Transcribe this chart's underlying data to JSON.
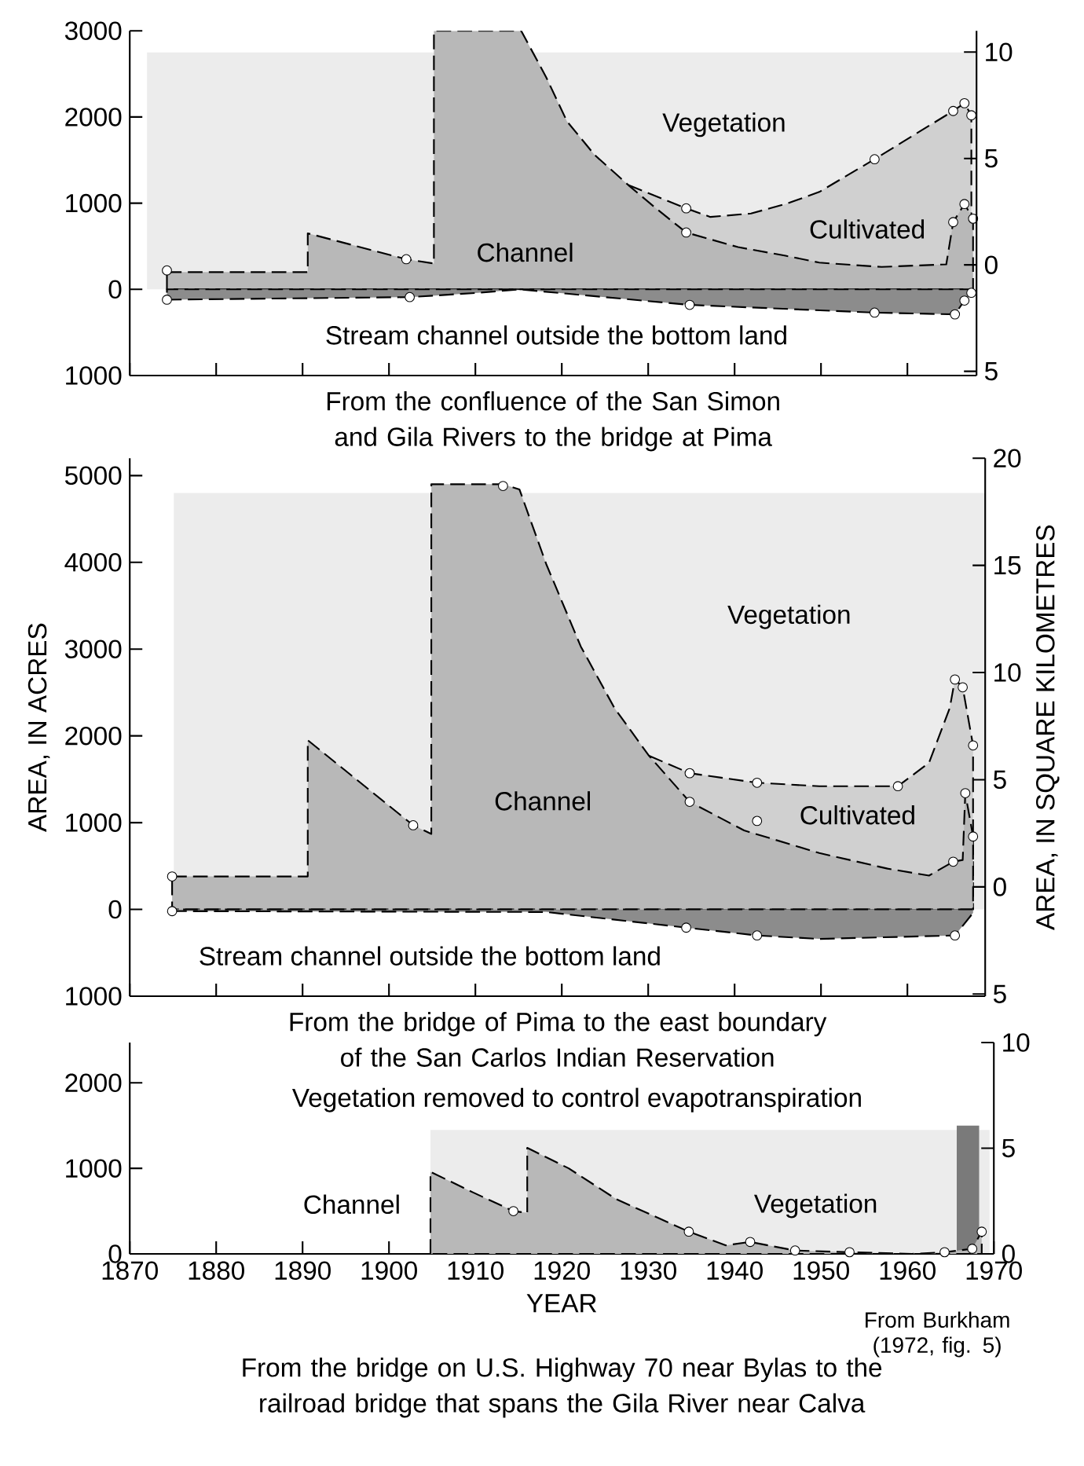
{
  "chart_data": [
    {
      "type": "area",
      "title": "From the confluence of the San Simon and Gila Rivers to the bridge at Pima",
      "xlim": [
        1870,
        1968
      ],
      "ylim": [
        -1000,
        3000
      ],
      "xticks": [
        1870,
        1880,
        1890,
        1900,
        1910,
        1920,
        1930,
        1940,
        1950,
        1960
      ],
      "yticks": [
        {
          "value": -1000,
          "label": "1000"
        },
        0,
        1000,
        2000,
        3000
      ],
      "y2lim": [
        -5.2,
        11
      ],
      "y2ticks": [
        {
          "value": -5,
          "label": "5"
        },
        0,
        5,
        10
      ],
      "tick_labels": "y",
      "series": [
        {
          "color": "#ececec",
          "x": [
            1872,
            1968
          ],
          "values": [
            2750,
            2750
          ]
        },
        {
          "color": "#d0d0d0",
          "line_style": "dashed",
          "x": [
            1927.7,
            1934.4,
            1937.2,
            1941.9,
            1945.9,
            1949.8,
            1956.2,
            1960.9,
            1965.3,
            1966.6,
            1967.4
          ],
          "values": [
            1210,
            940,
            840,
            880,
            990,
            1130,
            1510,
            1800,
            2070,
            2160,
            2020
          ]
        },
        {
          "color": "#b8b8b8",
          "line_style": "dashed",
          "x": [
            1874.3,
            1890.6,
            1890.6,
            1902.0,
            1905.2,
            1905.2,
            1915.3,
            1918.2,
            1920.6,
            1923.8,
            1927.7,
            1930.9,
            1934.4,
            1940.4,
            1945.9,
            1949.8,
            1957.0,
            1964.5,
            1965.3,
            1966.6,
            1967.6
          ],
          "values": [
            200,
            200,
            650,
            350,
            300,
            3000,
            3000,
            2460,
            1950,
            1560,
            1210,
            940,
            660,
            490,
            390,
            310,
            260,
            290,
            780,
            990,
            820
          ]
        },
        {
          "color": "#8c8c8c",
          "line_style": "dashed",
          "x": [
            1874.3,
            1902.4,
            1910.3,
            1915.1,
            1920.6,
            1934.8,
            1956.2,
            1965.5,
            1966.6,
            1967.4
          ],
          "values": [
            -120,
            -90,
            -40,
            0,
            -50,
            -180,
            -270,
            -290,
            -130,
            -40
          ]
        },
        {
          "type": "scatter",
          "color": "#000000",
          "marker": "circle",
          "x": [
            1874.3,
            1902.0,
            1934.4,
            1934.4,
            1956.2,
            1965.3,
            1966.6,
            1967.4,
            1965.3,
            1966.6,
            1967.6,
            1874.3,
            1902.4,
            1934.8,
            1956.2,
            1965.5,
            1966.6,
            1967.4
          ],
          "values": [
            220,
            350,
            940,
            660,
            1510,
            2070,
            2160,
            2020,
            780,
            990,
            820,
            -120,
            -90,
            -180,
            -270,
            -290,
            -130,
            -40
          ]
        }
      ],
      "annotations": [
        "Vegetation",
        "Channel",
        "Cultivated",
        "Stream channel outside the bottom land"
      ]
    },
    {
      "type": "area",
      "title": "From the bridge of Pima to the east boundary of the San Carlos Indian Reservation",
      "ylabel": "AREA, IN ACRES",
      "y2label": "AREA, IN SQUARE KILOMETRES",
      "xlim": [
        1870,
        1969
      ],
      "ylim": [
        -1000,
        5200
      ],
      "xticks": [
        1870,
        1880,
        1890,
        1900,
        1910,
        1920,
        1930,
        1940,
        1950,
        1960
      ],
      "yticks": [
        {
          "value": -1000,
          "label": "1000"
        },
        0,
        1000,
        2000,
        3000,
        4000,
        5000
      ],
      "y2lim": [
        -5.1,
        20
      ],
      "y2ticks": [
        {
          "value": -5,
          "label": "5"
        },
        0,
        5,
        10,
        15,
        20
      ],
      "tick_labels": "y",
      "series": [
        {
          "color": "#ececec",
          "x": [
            1875.1,
            1969
          ],
          "values": [
            4800,
            4800
          ]
        },
        {
          "color": "#d0d0d0",
          "line_style": "dashed",
          "x": [
            1930.1,
            1934.8,
            1942.6,
            1949.8,
            1958.9,
            1962.5,
            1964.9,
            1965.5,
            1966.4,
            1967.6
          ],
          "values": [
            1770,
            1570,
            1460,
            1420,
            1420,
            1690,
            2320,
            2650,
            2560,
            1890
          ]
        },
        {
          "color": "#b8b8b8",
          "line_style": "dashed",
          "x": [
            1874.9,
            1890.6,
            1890.6,
            1902.8,
            1904.9,
            1904.9,
            1913.2,
            1915.1,
            1918.2,
            1922.2,
            1926.1,
            1930.1,
            1934.8,
            1941.1,
            1949.8,
            1957.7,
            1962.5,
            1965.3,
            1966.4,
            1966.7,
            1967.6
          ],
          "values": [
            380,
            380,
            1950,
            970,
            870,
            4900,
            4900,
            4840,
            3980,
            3030,
            2320,
            1770,
            1240,
            910,
            650,
            470,
            390,
            550,
            570,
            1340,
            840
          ]
        },
        {
          "color": "#8c8c8c",
          "line_style": "dashed",
          "x": [
            1874.9,
            1918.2,
            1934.4,
            1942.6,
            1949.8,
            1965.5,
            1967.6
          ],
          "values": [
            -20,
            -30,
            -210,
            -300,
            -340,
            -300,
            -40
          ]
        },
        {
          "type": "scatter",
          "color": "#000000",
          "marker": "circle",
          "x": [
            1874.9,
            1874.9,
            1902.8,
            1913.2,
            1934.8,
            1934.8,
            1942.6,
            1942.6,
            1958.9,
            1965.5,
            1966.4,
            1967.6,
            1966.7,
            1967.6,
            1965.3,
            1934.4,
            1942.6,
            1965.5
          ],
          "values": [
            380,
            -20,
            970,
            4880,
            1570,
            1240,
            1460,
            1020,
            1420,
            2650,
            2560,
            1890,
            1340,
            840,
            550,
            -210,
            -300,
            -300
          ]
        }
      ],
      "annotations": [
        "Vegetation",
        "Channel",
        "Cultivated",
        "Stream channel outside the bottom land"
      ]
    },
    {
      "type": "area",
      "title": "From the bridge on U.S. Highway 70 near Bylas to the railroad bridge that spans the Gila River near Calva",
      "xlabel": "YEAR",
      "xlim": [
        1870,
        1970
      ],
      "ylim": [
        0,
        2471
      ],
      "xticks": [
        1870,
        1880,
        1890,
        1900,
        1910,
        1920,
        1930,
        1940,
        1950,
        1960,
        1970
      ],
      "yticks": [
        0,
        1000,
        2000
      ],
      "y2lim": [
        0,
        10
      ],
      "y2ticks": [
        0,
        5,
        10
      ],
      "series": [
        {
          "color": "#ececec",
          "x": [
            1904.8,
            1969.5
          ],
          "values": [
            1450,
            1450
          ]
        },
        {
          "color": "#7a7a7a",
          "x": [
            1965.7,
            1968.3
          ],
          "values": [
            1500,
            1500
          ]
        },
        {
          "color": "#b8b8b8",
          "line_style": "dashed",
          "x": [
            1904.8,
            1904.8,
            1909.7,
            1914.4,
            1916.0,
            1916.0,
            1920.8,
            1926.3,
            1934.7,
            1939.0,
            1941.8,
            1947.0,
            1953.3,
            1960.5,
            1964.3,
            1967.5,
            1968.6
          ],
          "values": [
            0,
            960,
            720,
            500,
            480,
            1240,
            1000,
            640,
            260,
            100,
            140,
            40,
            20,
            0,
            20,
            60,
            260
          ]
        },
        {
          "type": "scatter",
          "color": "#000000",
          "marker": "circle",
          "x": [
            1914.4,
            1934.7,
            1941.8,
            1947.0,
            1953.3,
            1964.3,
            1967.5,
            1968.6
          ],
          "values": [
            500,
            260,
            140,
            40,
            20,
            20,
            60,
            260
          ]
        }
      ],
      "annotations": [
        "Vegetation removed to control evapotranspiration",
        "Channel",
        "Vegetation",
        "From Burkham (1972, fig. 5)"
      ]
    }
  ]
}
